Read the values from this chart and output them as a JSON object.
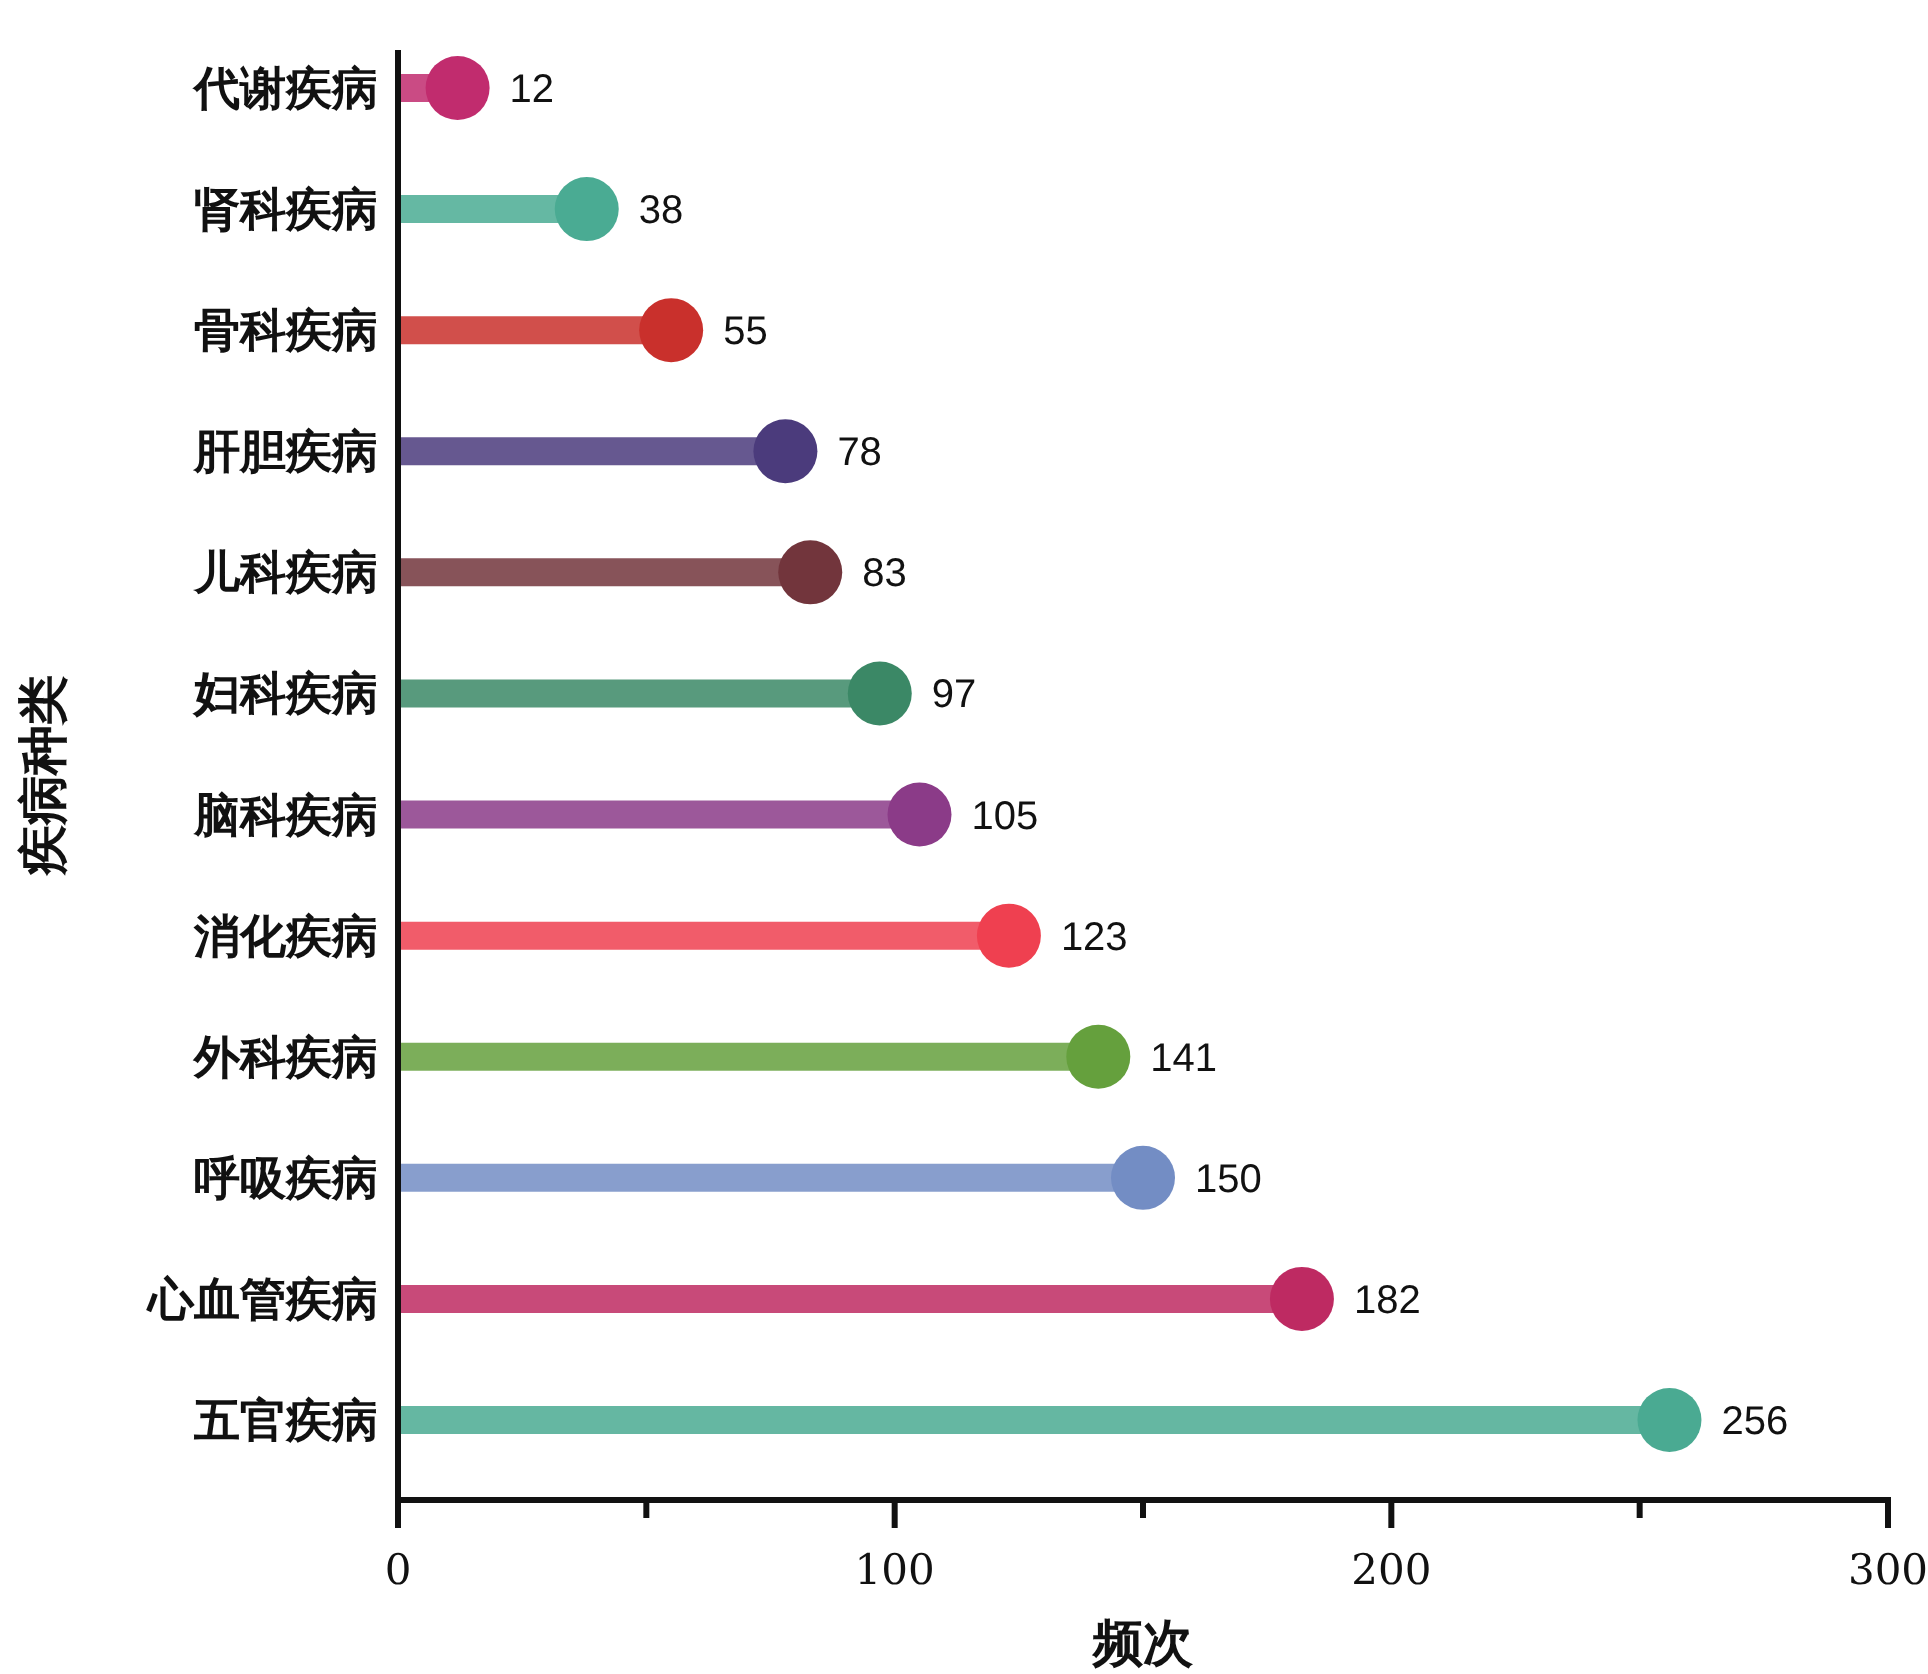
{
  "chart_data": {
    "type": "lollipop",
    "orientation": "horizontal",
    "xlabel": "频次",
    "ylabel": "疾病种类",
    "categories": [
      "代谢疾病",
      "肾科疾病",
      "骨科疾病",
      "肝胆疾病",
      "儿科疾病",
      "妇科疾病",
      "脑科疾病",
      "消化疾病",
      "外科疾病",
      "呼吸疾病",
      "心血管疾病",
      "五官疾病"
    ],
    "values": [
      12,
      38,
      55,
      78,
      83,
      97,
      105,
      123,
      141,
      150,
      182,
      256
    ],
    "colors": [
      "#c12c6e",
      "#4aab93",
      "#c9302c",
      "#4b3b7c",
      "#72353c",
      "#3b8866",
      "#8b3b88",
      "#ef4050",
      "#65a03d",
      "#738dc4",
      "#be2a62",
      "#4aaa92"
    ],
    "xlim": [
      0,
      300
    ],
    "xticks": [
      0,
      {
        "value": 50,
        "label": null
      },
      100,
      {
        "value": 150,
        "label": null
      },
      200,
      {
        "value": 250,
        "label": null
      },
      300
    ],
    "data_labels": true
  }
}
